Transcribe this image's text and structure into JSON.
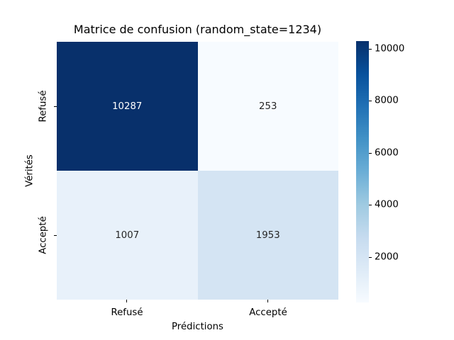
{
  "chart_data": {
    "type": "heatmap",
    "title": "Matrice de confusion (random_state=1234)",
    "xlabel": "Prédictions",
    "ylabel": "Vérités",
    "x_categories": [
      "Refusé",
      "Accepté"
    ],
    "y_categories": [
      "Refusé",
      "Accepté"
    ],
    "values": [
      [
        10287,
        253
      ],
      [
        1007,
        1953
      ]
    ],
    "colormap": "Blues",
    "vmin": 253,
    "vmax": 10287,
    "colorbar_ticks": [
      2000,
      4000,
      6000,
      8000,
      10000
    ],
    "colormap_stops": [
      "#f7fbff",
      "#deebf7",
      "#c6dbef",
      "#9ecae1",
      "#6baed6",
      "#4292c6",
      "#2171b5",
      "#08519c",
      "#08306b"
    ],
    "cell_colors": [
      [
        "#08306b",
        "#f7fbff"
      ],
      [
        "#e8f1fa",
        "#d4e4f3"
      ]
    ],
    "cell_text_colors": [
      [
        "#ffffff",
        "#262626"
      ],
      [
        "#262626",
        "#262626"
      ]
    ],
    "grid": false,
    "legend_position": "right-colorbar",
    "background_color": "#ffffff"
  }
}
